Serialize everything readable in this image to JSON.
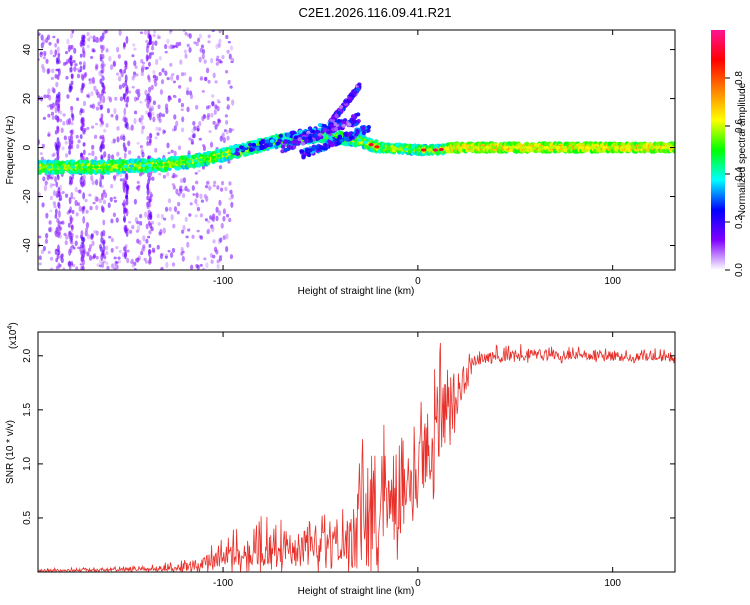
{
  "title": "C2E1.2026.116.09.41.R21",
  "chart_data": [
    {
      "id": "spectrogram",
      "type": "heatmap",
      "xlabel": "Height of straight line (km)",
      "ylabel": "Frequency (Hz)",
      "xlim": [
        -195,
        132
      ],
      "ylim": [
        -50,
        48
      ],
      "xticks": [
        -100,
        0,
        100
      ],
      "yticks": [
        -40,
        -20,
        0,
        20,
        40
      ],
      "xtick_labels": [
        "-100",
        "0",
        "100"
      ],
      "ytick_labels": [
        "-40",
        "-20",
        "0",
        "20",
        "40"
      ],
      "ridge_center": [
        {
          "x": -195,
          "y": -8
        },
        {
          "x": -160,
          "y": -8
        },
        {
          "x": -130,
          "y": -7
        },
        {
          "x": -110,
          "y": -5
        },
        {
          "x": -90,
          "y": -1
        },
        {
          "x": -70,
          "y": 3
        },
        {
          "x": -50,
          "y": 5
        },
        {
          "x": -30,
          "y": 3
        },
        {
          "x": -20,
          "y": 0
        },
        {
          "x": 0,
          "y": -1
        },
        {
          "x": 10,
          "y": -1
        },
        {
          "x": 20,
          "y": 0
        },
        {
          "x": 132,
          "y": 0
        }
      ],
      "colorbar": {
        "label": "Normalized spectral amplitude",
        "range": [
          0,
          1
        ],
        "ticks": [
          0.0,
          0.2,
          0.4,
          0.6,
          0.8
        ],
        "tick_labels": [
          "0.0",
          "0.2",
          "0.4",
          "0.6",
          "0.8"
        ],
        "colors": [
          "#ffffff",
          "#7f00ff",
          "#0000ff",
          "#00ffff",
          "#00ff00",
          "#ffff00",
          "#ff8000",
          "#ff0000",
          "#ff1493"
        ]
      }
    },
    {
      "id": "snr",
      "type": "line",
      "xlabel": "Height of straight line (km)",
      "ylabel": "SNR (10 * v/v)",
      "multiplier": "(x10",
      "multiplier_exp": "4",
      "multiplier_close": ")",
      "xlim": [
        -195,
        132
      ],
      "ylim": [
        0,
        2.22
      ],
      "xticks": [
        -100,
        0,
        100
      ],
      "yticks": [
        0.5,
        1.0,
        1.5,
        2.0
      ],
      "xtick_labels": [
        "-100",
        "0",
        "100"
      ],
      "ytick_labels": [
        "0.5",
        "1.0",
        "1.5",
        "2.0"
      ],
      "line_color": "#e8302a",
      "envelope": [
        {
          "x": -195,
          "base": 0.01,
          "amp": 0.02
        },
        {
          "x": -140,
          "base": 0.02,
          "amp": 0.03
        },
        {
          "x": -120,
          "base": 0.03,
          "amp": 0.08
        },
        {
          "x": -100,
          "base": 0.1,
          "amp": 0.2
        },
        {
          "x": -80,
          "base": 0.15,
          "amp": 0.35
        },
        {
          "x": -60,
          "base": 0.15,
          "amp": 0.35
        },
        {
          "x": -40,
          "base": 0.15,
          "amp": 0.35
        },
        {
          "x": -30,
          "base": 0.3,
          "amp": 0.8
        },
        {
          "x": -22,
          "base": 0.45,
          "amp": 1.0
        },
        {
          "x": -10,
          "base": 0.55,
          "amp": 0.8
        },
        {
          "x": 0,
          "base": 0.9,
          "amp": 0.6
        },
        {
          "x": 10,
          "base": 1.2,
          "amp": 0.8
        },
        {
          "x": 20,
          "base": 1.6,
          "amp": 0.4
        },
        {
          "x": 30,
          "base": 1.95,
          "amp": 0.12
        },
        {
          "x": 60,
          "base": 2.0,
          "amp": 0.1
        },
        {
          "x": 132,
          "base": 1.97,
          "amp": 0.08
        }
      ]
    }
  ]
}
